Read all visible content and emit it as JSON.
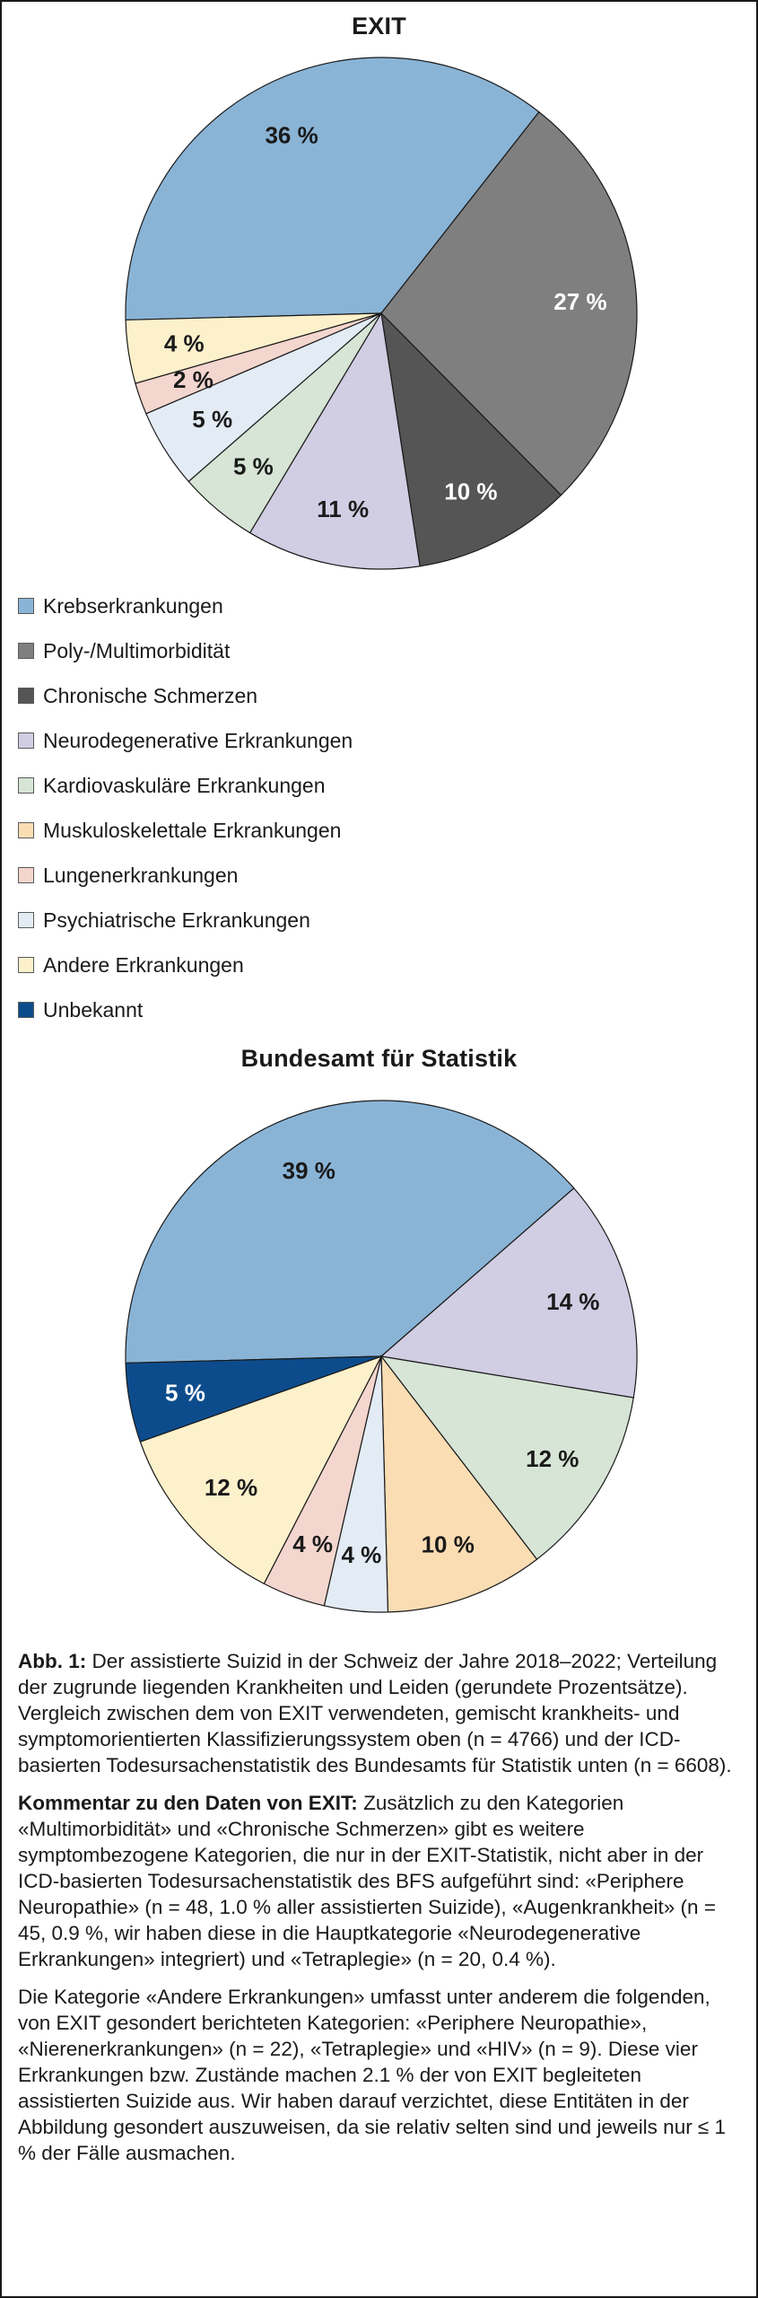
{
  "chart_data": [
    {
      "type": "pie",
      "title": "EXIT",
      "slices": [
        {
          "label": "Krebserkrankungen",
          "value": 36,
          "color": "#8AB4D6",
          "label_text": "36 %",
          "light": false
        },
        {
          "label": "Poly-/Multimorbidität",
          "value": 27,
          "color": "#7F7F7F",
          "label_text": "27 %",
          "light": true
        },
        {
          "label": "Chronische Schmerzen",
          "value": 10,
          "color": "#555555",
          "label_text": "10 %",
          "light": true
        },
        {
          "label": "Neurodegenerative Erkrankungen",
          "value": 11,
          "color": "#D1CDE3",
          "label_text": "11 %",
          "light": false
        },
        {
          "label": "Kardiovaskuläre Erkrankungen",
          "value": 5,
          "color": "#D6E5D5",
          "label_text": "5 %",
          "light": false
        },
        {
          "label": "Psychiatrische Erkrankungen",
          "value": 5,
          "color": "#E3EBF5",
          "label_text": "5 %",
          "light": false
        },
        {
          "label": "Lungenerkrankungen",
          "value": 2,
          "color": "#F3D6CE",
          "label_text": "2 %",
          "light": false
        },
        {
          "label": "Andere Erkrankungen",
          "value": 4,
          "color": "#FDF1CC",
          "label_text": "4 %",
          "light": false
        }
      ]
    },
    {
      "type": "pie",
      "title": "Bundesamt für Statistik",
      "slices": [
        {
          "label": "Krebserkrankungen",
          "value": 39,
          "color": "#8AB4D6",
          "label_text": "39 %",
          "light": false
        },
        {
          "label": "Neurodegenerative Erkrankungen",
          "value": 14,
          "color": "#D1CDE3",
          "label_text": "14 %",
          "light": false
        },
        {
          "label": "Kardiovaskuläre Erkrankungen",
          "value": 12,
          "color": "#D6E5D5",
          "label_text": "12 %",
          "light": false
        },
        {
          "label": "Muskuloskelettale Erkrankungen",
          "value": 10,
          "color": "#FBDDB4",
          "label_text": "10 %",
          "light": false
        },
        {
          "label": "Psychiatrische Erkrankungen",
          "value": 4,
          "color": "#E3EBF5",
          "label_text": "4 %",
          "light": false
        },
        {
          "label": "Lungenerkrankungen",
          "value": 4,
          "color": "#F3D6CE",
          "label_text": "4 %",
          "light": false
        },
        {
          "label": "Andere Erkrankungen",
          "value": 12,
          "color": "#FDF1CC",
          "label_text": "12 %",
          "light": false
        },
        {
          "label": "Unbekannt",
          "value": 5,
          "color": "#0D4C8C",
          "label_text": "5 %",
          "light": true
        }
      ]
    }
  ],
  "legend": [
    {
      "label": "Krebserkrankungen",
      "color": "#8AB4D6"
    },
    {
      "label": "Poly-/Multimorbidität",
      "color": "#7F7F7F"
    },
    {
      "label": "Chronische Schmerzen",
      "color": "#555555"
    },
    {
      "label": "Neurodegenerative Erkrankungen",
      "color": "#D1CDE3"
    },
    {
      "label": "Kardiovaskuläre Erkrankungen",
      "color": "#D6E5D5"
    },
    {
      "label": "Muskuloskelettale Erkrankungen",
      "color": "#FBDDB4"
    },
    {
      "label": "Lungenerkrankungen",
      "color": "#F3D6CE"
    },
    {
      "label": "Psychiatrische Erkrankungen",
      "color": "#E3EBF5"
    },
    {
      "label": "Andere Erkrankungen",
      "color": "#FDF1CC"
    },
    {
      "label": "Unbekannt",
      "color": "#0D4C8C"
    }
  ],
  "caption": {
    "fig_label": "Abb. 1:",
    "fig_text": "Der assistierte Suizid in der Schweiz der Jahre 2018–2022; Verteilung der zugrunde liegenden Krankheiten und Leiden (gerundete Prozentsätze). Vergleich zwischen dem von EXIT verwendeten, gemischt krankheits- und symptomorientierten Klassifizierungssystem oben (n = 4766) und der ICD-basierten Todesursachenstatistik des Bundesamts für Statistik unten (n = 6608).",
    "comment_label": "Kommentar zu den Daten von EXIT:",
    "comment_text": "Zusätzlich zu den Kategorien «Multimorbidität» und «Chronische Schmerzen» gibt es weitere symptombezogene Kategorien, die nur in der EXIT-Statistik, nicht aber in der ICD-basierten Todesursachenstatistik des BFS aufgeführt sind: «Periphere Neuropathie» (n = 48, 1.0 % aller assistierten Suizide), «Augenkrankheit» (n = 45, 0.9 %, wir haben diese in die Hauptkategorie «Neurodegenerative Erkrankungen» integriert) und «Tetraplegie» (n = 20, 0.4 %).",
    "other_text": "Die Kategorie «Andere Erkrankungen» umfasst unter anderem die folgenden, von EXIT gesondert berichteten Kategorien: «Periphere Neuropathie», «Nierenerkrankungen» (n = 22), «Tetraplegie» und «HIV» (n = 9). Diese vier Erkrankungen bzw. Zustände machen 2.1 % der von EXIT begleiteten assistierten Suizide aus. Wir haben darauf verzichtet, diese Entitäten in der Abbildung gesondert auszuweisen, da sie relativ selten sind und jeweils nur ≤ 1 % der Fälle ausmachen."
  }
}
